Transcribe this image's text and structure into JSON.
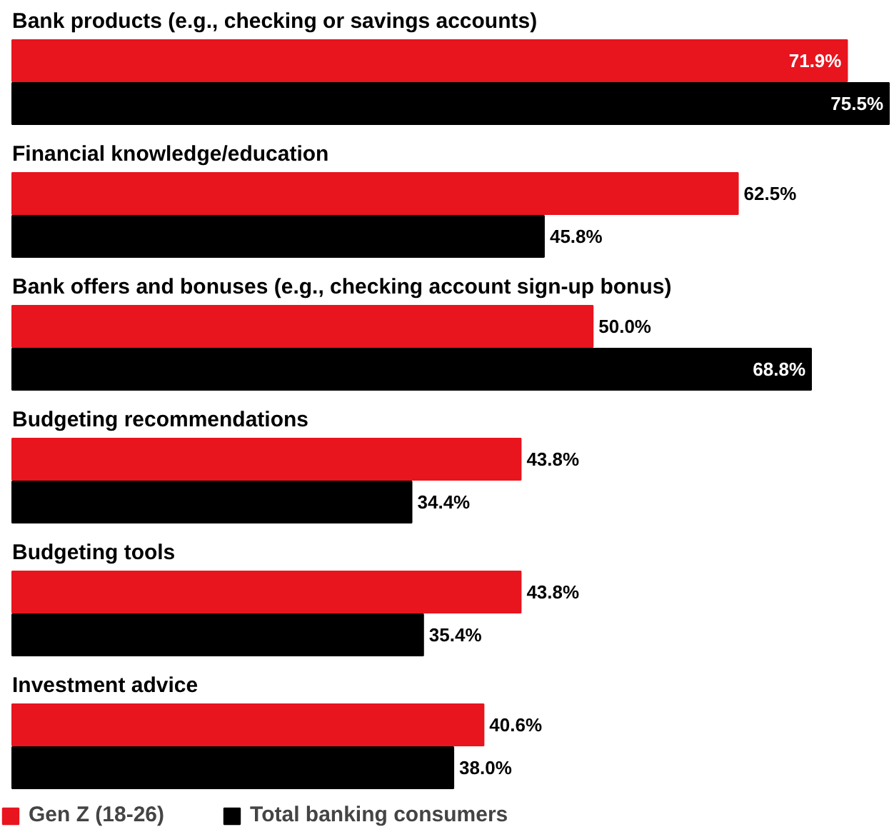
{
  "chart_data": {
    "type": "bar",
    "orientation": "horizontal",
    "categories": [
      "Bank products (e.g., checking or savings accounts)",
      "Financial knowledge/education",
      "Bank offers and bonuses (e.g., checking account sign-up bonus)",
      "Budgeting recommendations",
      "Budgeting tools",
      "Investment advice"
    ],
    "series": [
      {
        "name": "Gen Z (18-26)",
        "color": "#e8141e",
        "values": [
          71.9,
          62.5,
          50.0,
          43.8,
          43.8,
          40.6
        ],
        "value_labels": [
          "71.9%",
          "62.5%",
          "50.0%",
          "43.8%",
          "43.8%",
          "40.6%"
        ]
      },
      {
        "name": "Total banking consumers",
        "color": "#000000",
        "values": [
          75.5,
          45.8,
          68.8,
          34.4,
          35.4,
          38.0
        ],
        "value_labels": [
          "75.5%",
          "45.8%",
          "68.8%",
          "34.4%",
          "35.4%",
          "38.0%"
        ]
      }
    ],
    "legend": "bottom left"
  }
}
